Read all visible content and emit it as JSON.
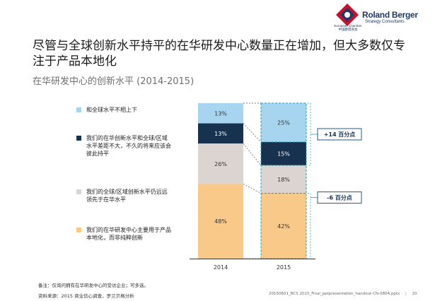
{
  "brand": {
    "name": "Roland Berger",
    "tagline": "Strategy Consultants",
    "chamber": "European Chamber 中国欧盟商会"
  },
  "title": "尽管与全球创新水平持平的在华研发中心数量正在增加，但大多数仅专注于产品本地化",
  "subtitle": "在华研发中心的创新水平 (2014-2015)",
  "legend": [
    {
      "label": "和全球水平不相上下",
      "color": "#a7d4ef"
    },
    {
      "label": "我们的在华创新水平和全球/区域水平差距不大，不久的将来应该会彼此持平",
      "color": "#16324f"
    },
    {
      "label": "我们的全球/区域创新水平仍远远领先于在华水平",
      "color": "#dcd4d0"
    },
    {
      "label": "我们的在华研发中心主要用于产品本地化，而非纯粹创新",
      "color": "#f9c98a"
    }
  ],
  "chart_data": {
    "type": "bar",
    "stacked": true,
    "categories": [
      "2014",
      "2015"
    ],
    "series": [
      {
        "name": "和全球水平不相上下",
        "values": [
          13,
          25
        ],
        "labels": [
          "13%",
          "25%"
        ],
        "color": "#a7d4ef"
      },
      {
        "name": "我们的在华创新水平和全球/区域水平差距不大，不久的将来应该会彼此持平",
        "values": [
          13,
          15
        ],
        "labels": [
          "13%",
          "15%"
        ],
        "color": "#16324f"
      },
      {
        "name": "我们的全球/区域创新水平仍远远领先于在华水平",
        "values": [
          26,
          18
        ],
        "labels": [
          "26%",
          "18%"
        ],
        "color": "#dcd4d0"
      },
      {
        "name": "我们的在华研发中心主要用于产品本地化，而非纯粹创新",
        "values": [
          48,
          42
        ],
        "labels": [
          "48%",
          "42%"
        ],
        "color": "#f9c98a"
      }
    ],
    "ylim": [
      0,
      100
    ],
    "annotations": [
      {
        "text": "+14 百分点",
        "series_group": [
          0,
          1
        ]
      },
      {
        "text": "-6 百分点",
        "series_group": [
          3
        ]
      }
    ]
  },
  "footer": {
    "note": "备注：仅询问拥有在华研发中心的受访企业；可多选。",
    "source": "资料来源：2015 商业信心调查，罗兰贝格分析",
    "file": "20150601_BCS 2015_Final_pptpresentation_handout-CN-0804.pptx",
    "page": "20"
  }
}
